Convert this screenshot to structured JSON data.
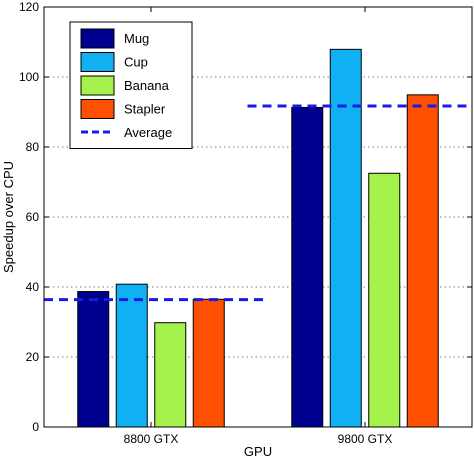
{
  "chart_data": {
    "type": "bar",
    "categories": [
      "8800 GTX",
      "9800 GTX"
    ],
    "series": [
      {
        "name": "Mug",
        "values": [
          38.7,
          91.3
        ],
        "color": "#00008f"
      },
      {
        "name": "Cup",
        "values": [
          40.8,
          107.9
        ],
        "color": "#0fb1f2"
      },
      {
        "name": "Banana",
        "values": [
          29.8,
          72.5
        ],
        "color": "#a6f24d"
      },
      {
        "name": "Stapler",
        "values": [
          36.5,
          94.9
        ],
        "color": "#ff4f00"
      }
    ],
    "average": {
      "name": "Average",
      "values": [
        36.4,
        91.7
      ],
      "color": "#1a1ae6"
    },
    "xlabel": "GPU",
    "ylabel": "Speedup over CPU",
    "ylim": [
      0,
      120
    ],
    "yticks": [
      0,
      20,
      40,
      60,
      80,
      100,
      120
    ],
    "grid": "horizontal-dotted",
    "legend": "top-left"
  }
}
